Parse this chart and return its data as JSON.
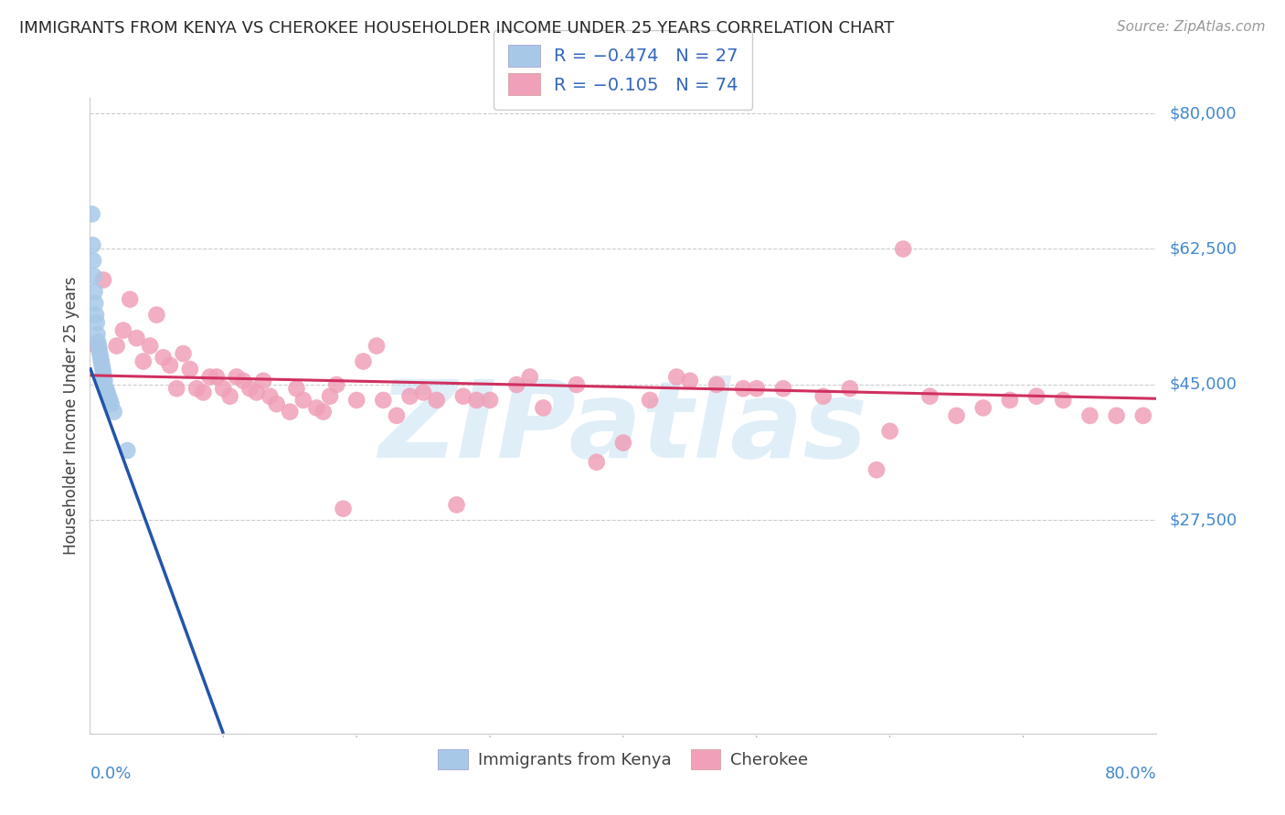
{
  "title": "IMMIGRANTS FROM KENYA VS CHEROKEE HOUSEHOLDER INCOME UNDER 25 YEARS CORRELATION CHART",
  "source": "Source: ZipAtlas.com",
  "ylabel": "Householder Income Under 25 years",
  "xlim": [
    0.0,
    80.0
  ],
  "ylim": [
    0,
    82000
  ],
  "yticks": [
    0,
    27500,
    45000,
    62500,
    80000
  ],
  "ytick_labels": [
    "",
    "$27,500",
    "$45,000",
    "$62,500",
    "$80,000"
  ],
  "blue_color": "#a8c8e8",
  "pink_color": "#f0a0b8",
  "blue_line_color": "#2255aa",
  "pink_line_color": "#d03060",
  "axis_label_color": "#4488cc",
  "watermark_color": "#c8e0f4",
  "watermark": "ZIPatlas",
  "kenya_x": [
    0.15,
    0.2,
    0.25,
    0.3,
    0.35,
    0.4,
    0.45,
    0.5,
    0.55,
    0.6,
    0.65,
    0.7,
    0.75,
    0.8,
    0.85,
    0.9,
    0.95,
    1.0,
    1.05,
    1.1,
    1.2,
    1.3,
    1.4,
    1.5,
    1.6,
    1.8,
    2.8
  ],
  "kenya_y": [
    67000,
    63000,
    61000,
    59000,
    57000,
    55500,
    54000,
    53000,
    51500,
    50500,
    50000,
    49500,
    49000,
    48500,
    48000,
    47500,
    47000,
    46500,
    46000,
    45500,
    44500,
    44000,
    43500,
    43000,
    42500,
    41500,
    36500
  ],
  "cherokee_x": [
    0.5,
    1.0,
    2.0,
    2.5,
    3.0,
    3.5,
    4.0,
    4.5,
    5.0,
    5.5,
    6.0,
    6.5,
    7.0,
    7.5,
    8.0,
    8.5,
    9.0,
    9.5,
    10.0,
    10.5,
    11.0,
    11.5,
    12.0,
    12.5,
    13.0,
    13.5,
    14.0,
    15.0,
    15.5,
    16.0,
    17.0,
    17.5,
    18.0,
    18.5,
    19.0,
    20.0,
    20.5,
    21.5,
    22.0,
    23.0,
    24.0,
    25.0,
    26.0,
    27.5,
    28.0,
    29.0,
    30.0,
    32.0,
    33.0,
    34.0,
    36.5,
    38.0,
    40.0,
    42.0,
    44.0,
    45.0,
    47.0,
    49.0,
    50.0,
    52.0,
    55.0,
    57.0,
    59.0,
    60.0,
    61.0,
    63.0,
    65.0,
    67.0,
    69.0,
    71.0,
    73.0,
    75.0,
    77.0,
    79.0
  ],
  "cherokee_y": [
    50000,
    58500,
    50000,
    52000,
    56000,
    51000,
    48000,
    50000,
    54000,
    48500,
    47500,
    44500,
    49000,
    47000,
    44500,
    44000,
    46000,
    46000,
    44500,
    43500,
    46000,
    45500,
    44500,
    44000,
    45500,
    43500,
    42500,
    41500,
    44500,
    43000,
    42000,
    41500,
    43500,
    45000,
    29000,
    43000,
    48000,
    50000,
    43000,
    41000,
    43500,
    44000,
    43000,
    29500,
    43500,
    43000,
    43000,
    45000,
    46000,
    42000,
    45000,
    35000,
    37500,
    43000,
    46000,
    45500,
    45000,
    44500,
    44500,
    44500,
    43500,
    44500,
    34000,
    39000,
    62500,
    43500,
    41000,
    42000,
    43000,
    43500,
    43000,
    41000,
    41000,
    41000
  ],
  "kenya_trend_x0": 0,
  "kenya_trend_y0": 47200,
  "kenya_trend_x1": 10.0,
  "kenya_trend_y1": 0,
  "cherokee_trend_x0": 0,
  "cherokee_trend_y0": 46200,
  "cherokee_trend_x1": 80,
  "cherokee_trend_y1": 43200
}
